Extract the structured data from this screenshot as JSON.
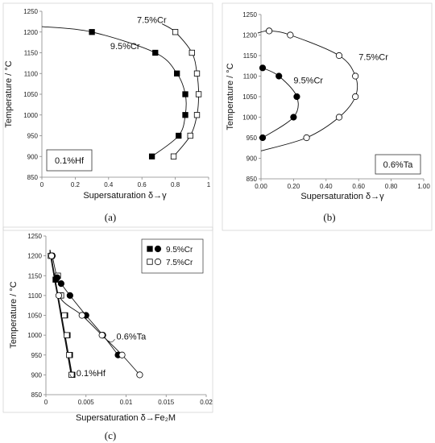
{
  "chart_data": [
    {
      "type": "scatter",
      "panel_label": "(a)",
      "box_label": "0.1%Hf",
      "xlabel": "Supersaturation δ→γ",
      "ylabel": "Temperature / °C",
      "xlim": [
        0,
        1
      ],
      "ylim": [
        850,
        1250
      ],
      "xticks": [
        "0",
        "0.2",
        "0.4",
        "0.6",
        "0.8",
        "1"
      ],
      "yticks": [
        "850",
        "900",
        "950",
        "1000",
        "1050",
        "1100",
        "1150",
        "1200",
        "1250"
      ],
      "series": [
        {
          "name": "9.5%Cr",
          "marker": "filled-square",
          "points": [
            [
              0.3,
              1200
            ],
            [
              0.68,
              1150
            ],
            [
              0.81,
              1100
            ],
            [
              0.86,
              1050
            ],
            [
              0.86,
              1000
            ],
            [
              0.82,
              950
            ],
            [
              0.66,
              900
            ]
          ],
          "curve": [
            [
              0,
              1213
            ],
            [
              0.3,
              1200
            ],
            [
              0.68,
              1150
            ],
            [
              0.81,
              1100
            ],
            [
              0.86,
              1050
            ],
            [
              0.86,
              1000
            ],
            [
              0.82,
              950
            ],
            [
              0.66,
              900
            ]
          ]
        },
        {
          "name": "7.5%Cr",
          "marker": "open-square",
          "points": [
            [
              0.8,
              1200
            ],
            [
              0.9,
              1150
            ],
            [
              0.93,
              1100
            ],
            [
              0.94,
              1050
            ],
            [
              0.93,
              1000
            ],
            [
              0.89,
              950
            ],
            [
              0.79,
              900
            ]
          ],
          "curve": [
            [
              0.72,
              1220
            ],
            [
              0.8,
              1200
            ],
            [
              0.9,
              1150
            ],
            [
              0.93,
              1100
            ],
            [
              0.94,
              1050
            ],
            [
              0.93,
              1000
            ],
            [
              0.89,
              950
            ],
            [
              0.79,
              900
            ]
          ]
        }
      ],
      "annotations": [
        {
          "text": "7.5%Cr",
          "x": 0.57,
          "y": 1222
        },
        {
          "text": "9.5%Cr",
          "x": 0.41,
          "y": 1159
        }
      ]
    },
    {
      "type": "scatter",
      "panel_label": "(b)",
      "box_label": "0.6%Ta",
      "xlabel": "Supersaturation δ→γ",
      "ylabel": "Temperature / °C",
      "xlim": [
        0,
        1
      ],
      "ylim": [
        850,
        1250
      ],
      "xticks": [
        "0.00",
        "0.20",
        "0.40",
        "0.60",
        "0.80",
        "1.00"
      ],
      "yticks": [
        "850",
        "900",
        "950",
        "1000",
        "1050",
        "1100",
        "1150",
        "1200",
        "1250"
      ],
      "series": [
        {
          "name": "9.5%Cr",
          "marker": "filled-circle",
          "points": [
            [
              0.01,
              1120
            ],
            [
              0.11,
              1100
            ],
            [
              0.22,
              1050
            ],
            [
              0.2,
              1000
            ],
            [
              0.01,
              950
            ]
          ],
          "curve": [
            [
              0.01,
              1120
            ],
            [
              0.11,
              1100
            ],
            [
              0.22,
              1050
            ],
            [
              0.2,
              1000
            ],
            [
              0.01,
              950
            ]
          ]
        },
        {
          "name": "7.5%Cr",
          "marker": "open-circle",
          "points": [
            [
              0.05,
              1210
            ],
            [
              0.18,
              1200
            ],
            [
              0.48,
              1150
            ],
            [
              0.58,
              1100
            ],
            [
              0.58,
              1050
            ],
            [
              0.48,
              1000
            ],
            [
              0.28,
              950
            ]
          ],
          "curve": [
            [
              -0.02,
              1205
            ],
            [
              0.05,
              1210
            ],
            [
              0.18,
              1200
            ],
            [
              0.48,
              1150
            ],
            [
              0.58,
              1100
            ],
            [
              0.58,
              1050
            ],
            [
              0.48,
              1000
            ],
            [
              0.28,
              950
            ],
            [
              0,
              918
            ]
          ]
        }
      ],
      "annotations": [
        {
          "text": "7.5%Cr",
          "x": 0.6,
          "y": 1139
        },
        {
          "text": "9.5%Cr",
          "x": 0.2,
          "y": 1082
        }
      ]
    },
    {
      "type": "scatter",
      "panel_label": "(c)",
      "xlabel": "Supersaturation δ→Fe₂M",
      "ylabel": "Temperature / °C",
      "xlim": [
        0,
        0.02
      ],
      "ylim": [
        850,
        1250
      ],
      "xticks": [
        "0",
        "0.005",
        "0.01",
        "0.015",
        "0.02"
      ],
      "yticks": [
        "850",
        "900",
        "950",
        "1000",
        "1050",
        "1100",
        "1150",
        "1200",
        "1250"
      ],
      "legend": {
        "position": "top-right",
        "entries": [
          {
            "label": "9.5%Cr",
            "markers": [
              "filled-square",
              "filled-circle"
            ]
          },
          {
            "label": "7.5%Cr",
            "markers": [
              "open-square",
              "open-circle"
            ]
          }
        ]
      },
      "series": [
        {
          "name": "9.5%Cr 0.1%Hf",
          "marker": "filled-square",
          "points": [
            [
              0.0007,
              1200
            ],
            [
              0.0012,
              1140
            ],
            [
              0.0018,
              1100
            ],
            [
              0.0024,
              1050
            ],
            [
              0.0027,
              1000
            ],
            [
              0.003,
              950
            ],
            [
              0.0033,
              900
            ]
          ],
          "curve": [
            [
              0.0005,
              1215
            ],
            [
              0.0033,
              895
            ]
          ]
        },
        {
          "name": "7.5%Cr 0.1%Hf",
          "marker": "open-square",
          "points": [
            [
              0.0006,
              1200
            ],
            [
              0.0015,
              1150
            ],
            [
              0.0019,
              1100
            ],
            [
              0.0023,
              1050
            ],
            [
              0.0026,
              1000
            ],
            [
              0.0029,
              950
            ],
            [
              0.0032,
              900
            ]
          ],
          "curve": [
            [
              0.0005,
              1210
            ],
            [
              0.0032,
              895
            ]
          ]
        },
        {
          "name": "9.5%Cr 0.6%Ta",
          "marker": "filled-circle",
          "points": [
            [
              0.0008,
              1200
            ],
            [
              0.0014,
              1145
            ],
            [
              0.0019,
              1130
            ],
            [
              0.003,
              1100
            ],
            [
              0.005,
              1050
            ],
            [
              0.0071,
              1000
            ],
            [
              0.009,
              950
            ]
          ],
          "curve": [
            [
              0.0008,
              1200
            ],
            [
              0.0014,
              1145
            ],
            [
              0.0019,
              1130
            ],
            [
              0.003,
              1100
            ],
            [
              0.005,
              1050
            ],
            [
              0.0071,
              1000
            ],
            [
              0.009,
              950
            ]
          ]
        },
        {
          "name": "7.5%Cr 0.6%Ta",
          "marker": "open-circle",
          "points": [
            [
              0.0007,
              1200
            ],
            [
              0.0016,
              1100
            ],
            [
              0.0045,
              1050
            ],
            [
              0.007,
              1000
            ],
            [
              0.0095,
              950
            ],
            [
              0.0117,
              900
            ]
          ],
          "curve": [
            [
              0.0007,
              1200
            ],
            [
              0.0016,
              1100
            ],
            [
              0.0045,
              1050
            ],
            [
              0.007,
              1000
            ],
            [
              0.0095,
              950
            ],
            [
              0.0117,
              900
            ]
          ]
        }
      ],
      "annotations": [
        {
          "text": "0.6%Ta",
          "x": 0.0088,
          "y": 989
        },
        {
          "text": "0.1%Hf",
          "x": 0.0038,
          "y": 897
        }
      ]
    }
  ]
}
